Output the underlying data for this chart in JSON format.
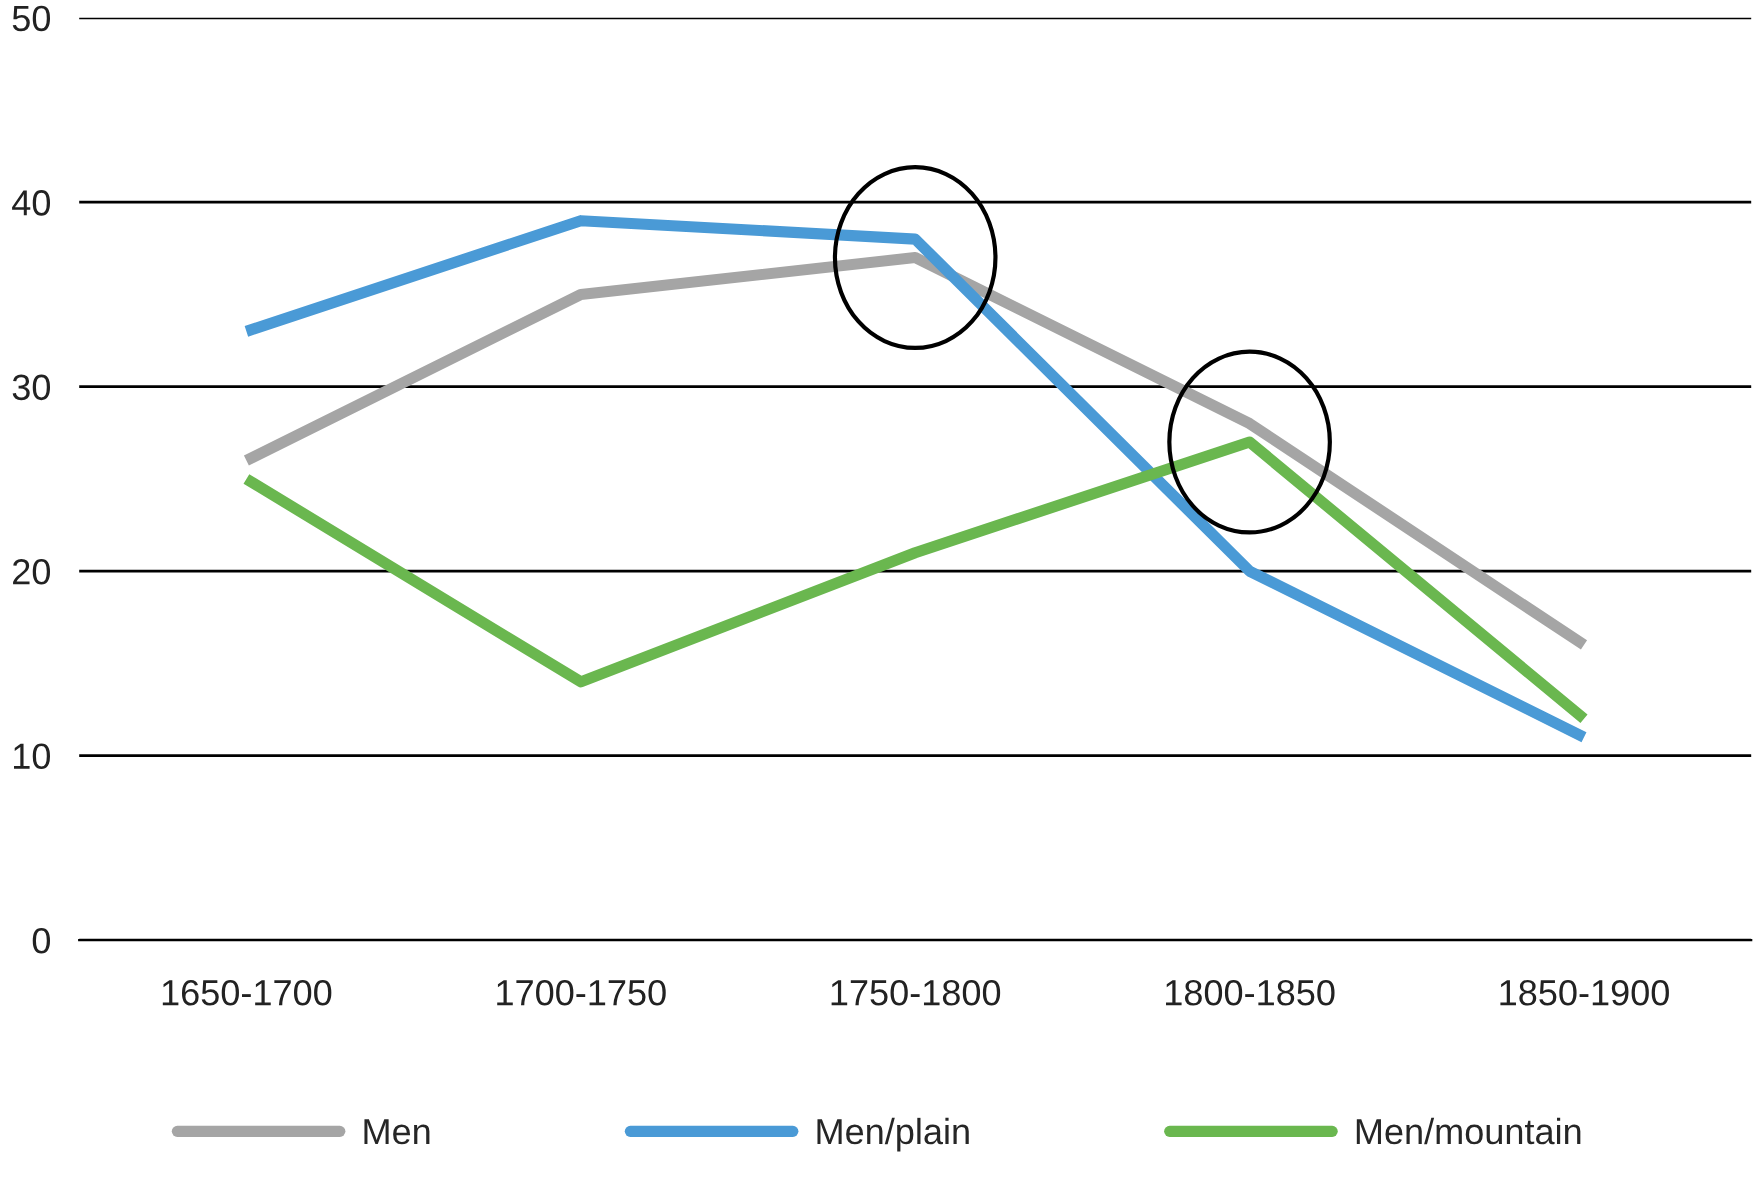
{
  "chart_data": {
    "type": "line",
    "categories": [
      "1650-1700",
      "1700-1750",
      "1750-1800",
      "1800-1850",
      "1850-1900"
    ],
    "series": [
      {
        "name": "Men",
        "color": "#a5a5a5",
        "values": [
          26,
          35,
          37,
          28,
          16
        ]
      },
      {
        "name": "Men/plain",
        "color": "#4a9ad6",
        "values": [
          33,
          39,
          38,
          20,
          11
        ]
      },
      {
        "name": "Men/mountain",
        "color": "#6ab74f",
        "values": [
          25,
          14,
          21,
          27,
          12
        ]
      }
    ],
    "ylim": [
      0,
      50
    ],
    "yticks": [
      0,
      10,
      20,
      30,
      40,
      50
    ],
    "grid": "y",
    "legend": "bottom",
    "marker": "none",
    "line_style": "solid"
  }
}
